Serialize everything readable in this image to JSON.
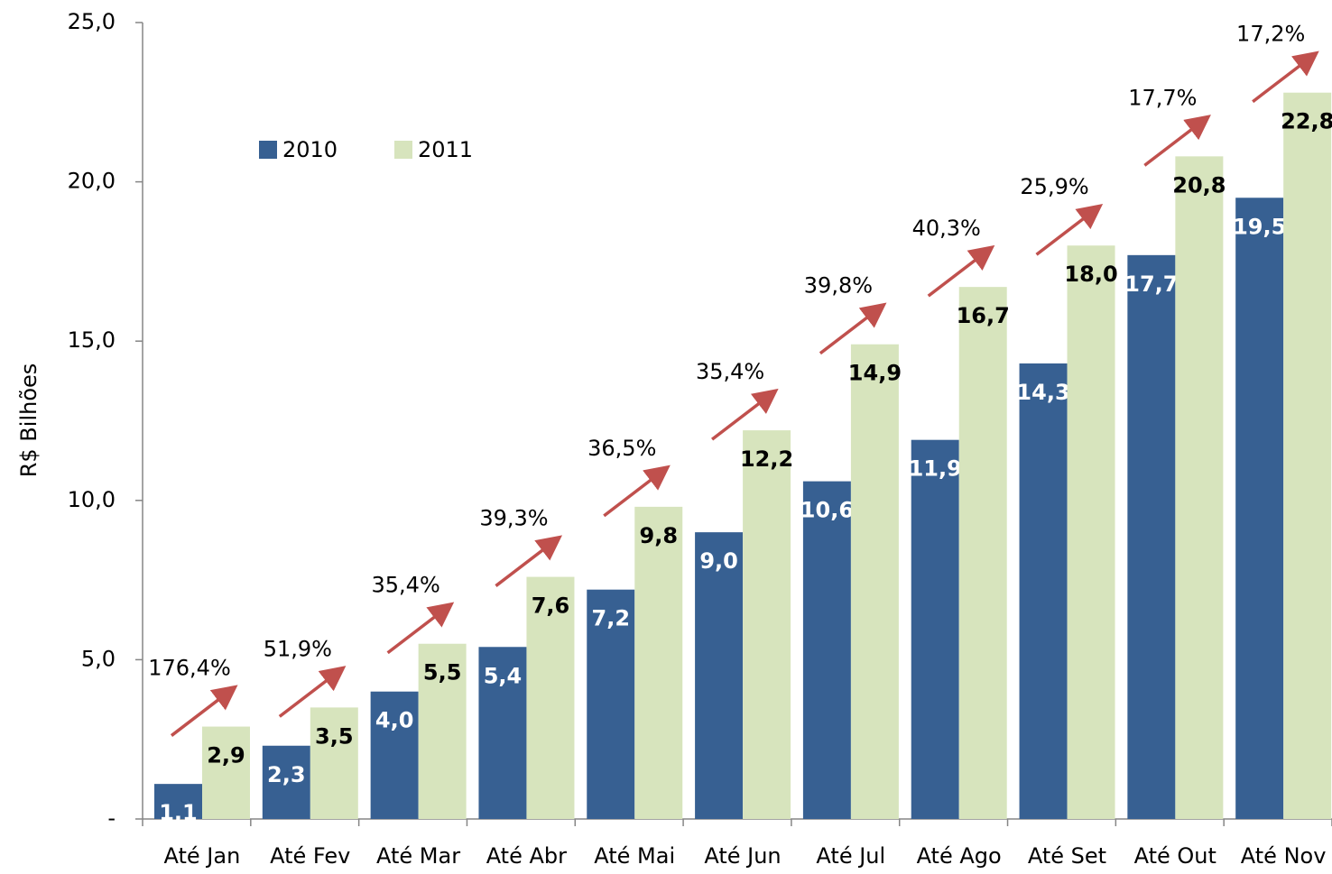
{
  "chart_data": {
    "type": "bar",
    "y_label": "R$ Bilhões",
    "categories": [
      "Até Jan",
      "Até Fev",
      "Até Mar",
      "Até Abr",
      "Até Mai",
      "Até Jun",
      "Até Jul",
      "Até Ago",
      "Até Set",
      "Até Out",
      "Até Nov"
    ],
    "series": [
      {
        "name": "2010",
        "color": "#376092",
        "values": [
          1.1,
          2.3,
          4.0,
          5.4,
          7.2,
          9.0,
          10.6,
          11.9,
          14.3,
          17.7,
          19.5
        ],
        "value_labels": [
          "1,1",
          "2,3",
          "4,0",
          "5,4",
          "7,2",
          "9,0",
          "10,6",
          "11,9",
          "14,3",
          "17,7",
          "19,5"
        ]
      },
      {
        "name": "2011",
        "color": "#d7e4bd",
        "values": [
          2.9,
          3.5,
          5.5,
          7.6,
          9.8,
          12.2,
          14.9,
          16.7,
          18.0,
          20.8,
          22.8
        ],
        "value_labels": [
          "2,9",
          "3,5",
          "5,5",
          "7,6",
          "9,8",
          "12,2",
          "14,9",
          "16,7",
          "18,0",
          "20,8",
          "22,8"
        ]
      }
    ],
    "growth": {
      "color": "#c0504d",
      "values": [
        176.4,
        51.9,
        35.4,
        39.3,
        36.5,
        35.4,
        39.8,
        40.3,
        25.9,
        17.7,
        17.2
      ],
      "value_labels": [
        "176,4%",
        "51,9%",
        "35,4%",
        "39,3%",
        "36,5%",
        "35,4%",
        "39,8%",
        "40,3%",
        "25,9%",
        "17,7%",
        "17,2%"
      ]
    },
    "ylim": [
      0,
      25
    ],
    "yticks": [
      {
        "value": 0,
        "label": "-"
      },
      {
        "value": 5,
        "label": "5,0"
      },
      {
        "value": 10,
        "label": "10,0"
      },
      {
        "value": 15,
        "label": "15,0"
      },
      {
        "value": 20,
        "label": "20,0"
      },
      {
        "value": 25,
        "label": "25,0"
      }
    ],
    "legend": "top-left"
  }
}
